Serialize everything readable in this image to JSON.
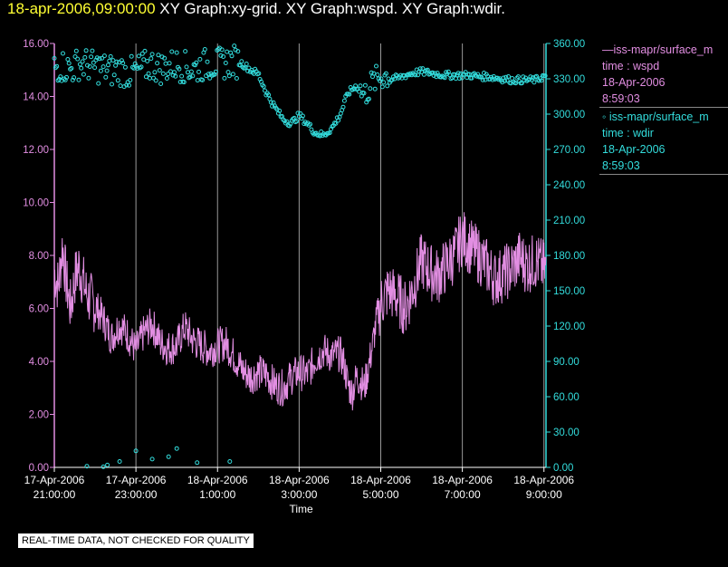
{
  "header": {
    "timestamp": "18-apr-2006,09:00:00",
    "graph_titles": " XY Graph:xy-grid.  XY Graph:wspd.  XY Graph:wdir."
  },
  "colors": {
    "wspd": "#e28ee2",
    "wdir": "#33dddd",
    "axis_left": "#e28ee2",
    "axis_right": "#33dddd",
    "grid": "#999999",
    "timestamp": "#ffff33"
  },
  "legend": {
    "series1": {
      "name": "—iss-mapr/surface_m",
      "line1": "time : wspd",
      "line2": "18-Apr-2006",
      "line3": "8:59:03"
    },
    "series2": {
      "name": "◦ iss-mapr/surface_m",
      "line1": "time : wdir",
      "line2": "18-Apr-2006",
      "line3": "8:59:03"
    }
  },
  "disclaimer": "REAL-TIME DATA, NOT CHECKED FOR QUALITY",
  "chart_data": {
    "type": "line",
    "title": "XY Graph",
    "xlabel": "Time",
    "ylabel_left": "wspd",
    "ylabel_right": "wdir",
    "x_hours_range": [
      0,
      12.05
    ],
    "ylim_left": [
      0,
      16
    ],
    "ylim_right": [
      0,
      360
    ],
    "grid": "vertical",
    "left_ticks": [
      "0.00",
      "2.00",
      "4.00",
      "6.00",
      "8.00",
      "10.00",
      "12.00",
      "14.00",
      "16.00"
    ],
    "right_ticks": [
      "0.00",
      "30.00",
      "60.00",
      "90.00",
      "120.00",
      "150.00",
      "180.00",
      "210.00",
      "240.00",
      "270.00",
      "300.00",
      "330.00",
      "360.00"
    ],
    "x_ticks": [
      {
        "hour": 0,
        "date": "17-Apr-2006",
        "time": "21:00:00"
      },
      {
        "hour": 2,
        "date": "17-Apr-2006",
        "time": "23:00:00"
      },
      {
        "hour": 4,
        "date": "18-Apr-2006",
        "time": "1:00:00"
      },
      {
        "hour": 6,
        "date": "18-Apr-2006",
        "time": "3:00:00"
      },
      {
        "hour": 8,
        "date": "18-Apr-2006",
        "time": "5:00:00"
      },
      {
        "hour": 10,
        "date": "18-Apr-2006",
        "time": "7:00:00"
      },
      {
        "hour": 12,
        "date": "18-Apr-2006",
        "time": "9:00:00"
      }
    ],
    "series": [
      {
        "name": "wspd",
        "axis": "left",
        "style": "line",
        "x_hours": [
          0,
          0.1,
          0.2,
          0.3,
          0.4,
          0.5,
          0.6,
          0.8,
          1,
          1.2,
          1.4,
          1.6,
          1.8,
          2,
          2.2,
          2.4,
          2.6,
          2.8,
          3,
          3.2,
          3.4,
          3.6,
          3.8,
          4,
          4.2,
          4.4,
          4.6,
          4.8,
          5,
          5.2,
          5.4,
          5.6,
          5.8,
          6,
          6.2,
          6.4,
          6.6,
          6.8,
          7,
          7.1,
          7.2,
          7.3,
          7.4,
          7.5,
          7.6,
          7.7,
          7.8,
          7.9,
          8,
          8.2,
          8.4,
          8.6,
          8.8,
          9,
          9.2,
          9.4,
          9.6,
          9.8,
          10,
          10.2,
          10.4,
          10.6,
          10.8,
          11,
          11.2,
          11.4,
          11.6,
          11.8,
          12
        ],
        "values": [
          7.4,
          6.8,
          8.4,
          6.9,
          6.0,
          7.1,
          7.6,
          6.5,
          6.1,
          5.6,
          4.9,
          5.4,
          5.0,
          4.4,
          5.1,
          5.4,
          4.7,
          4.5,
          4.6,
          5.3,
          4.8,
          4.6,
          4.4,
          4.6,
          4.7,
          4.2,
          3.7,
          3.4,
          3.6,
          3.5,
          3.1,
          3.0,
          3.4,
          3.6,
          3.5,
          4.1,
          4.4,
          4.2,
          4.3,
          3.9,
          3.1,
          2.8,
          3.4,
          3.3,
          3.0,
          3.8,
          4.6,
          5.6,
          6.2,
          6.7,
          6.4,
          6.0,
          6.8,
          7.8,
          7.4,
          7.2,
          7.6,
          8.0,
          8.7,
          8.3,
          8.0,
          7.6,
          7.1,
          7.3,
          7.5,
          7.9,
          7.6,
          7.8,
          7.5
        ]
      },
      {
        "name": "wdir",
        "axis": "right",
        "style": "scatter",
        "x_hours": [
          0,
          0.2,
          0.4,
          0.6,
          0.8,
          1,
          1.2,
          1.4,
          1.6,
          1.8,
          2,
          2.2,
          2.4,
          2.6,
          2.8,
          3,
          3.2,
          3.4,
          3.6,
          3.8,
          4,
          4.2,
          4.4,
          4.6,
          4.8,
          5,
          5.2,
          5.4,
          5.6,
          5.8,
          6,
          6.2,
          6.4,
          6.6,
          6.8,
          7,
          7.2,
          7.4,
          7.6,
          7.8,
          8,
          8.2,
          8.4,
          8.6,
          8.8,
          9,
          9.2,
          9.4,
          9.6,
          9.8,
          10,
          10.2,
          10.4,
          10.6,
          10.8,
          11,
          11.2,
          11.4,
          11.6,
          11.8,
          12
        ],
        "values": [
          340,
          341,
          338,
          343,
          342,
          340,
          339,
          337,
          338,
          335,
          336,
          340,
          342,
          339,
          341,
          342,
          340,
          338,
          341,
          343,
          342,
          344,
          345,
          343,
          338,
          334,
          318,
          306,
          296,
          292,
          299,
          292,
          284,
          282,
          288,
          299,
          318,
          324,
          316,
          327,
          332,
          333,
          330,
          333,
          335,
          336,
          335,
          334,
          333,
          333,
          333,
          333,
          332,
          332,
          331,
          330,
          329,
          329,
          329,
          329,
          332
        ],
        "outliers_x_hours": [
          0.8,
          1.2,
          1.3,
          1.6,
          2.0,
          2.4,
          2.8,
          3.0,
          3.5,
          4.3
        ],
        "outliers_values": [
          1,
          0.5,
          2,
          5,
          14,
          7,
          9,
          16,
          4,
          5
        ]
      }
    ]
  }
}
